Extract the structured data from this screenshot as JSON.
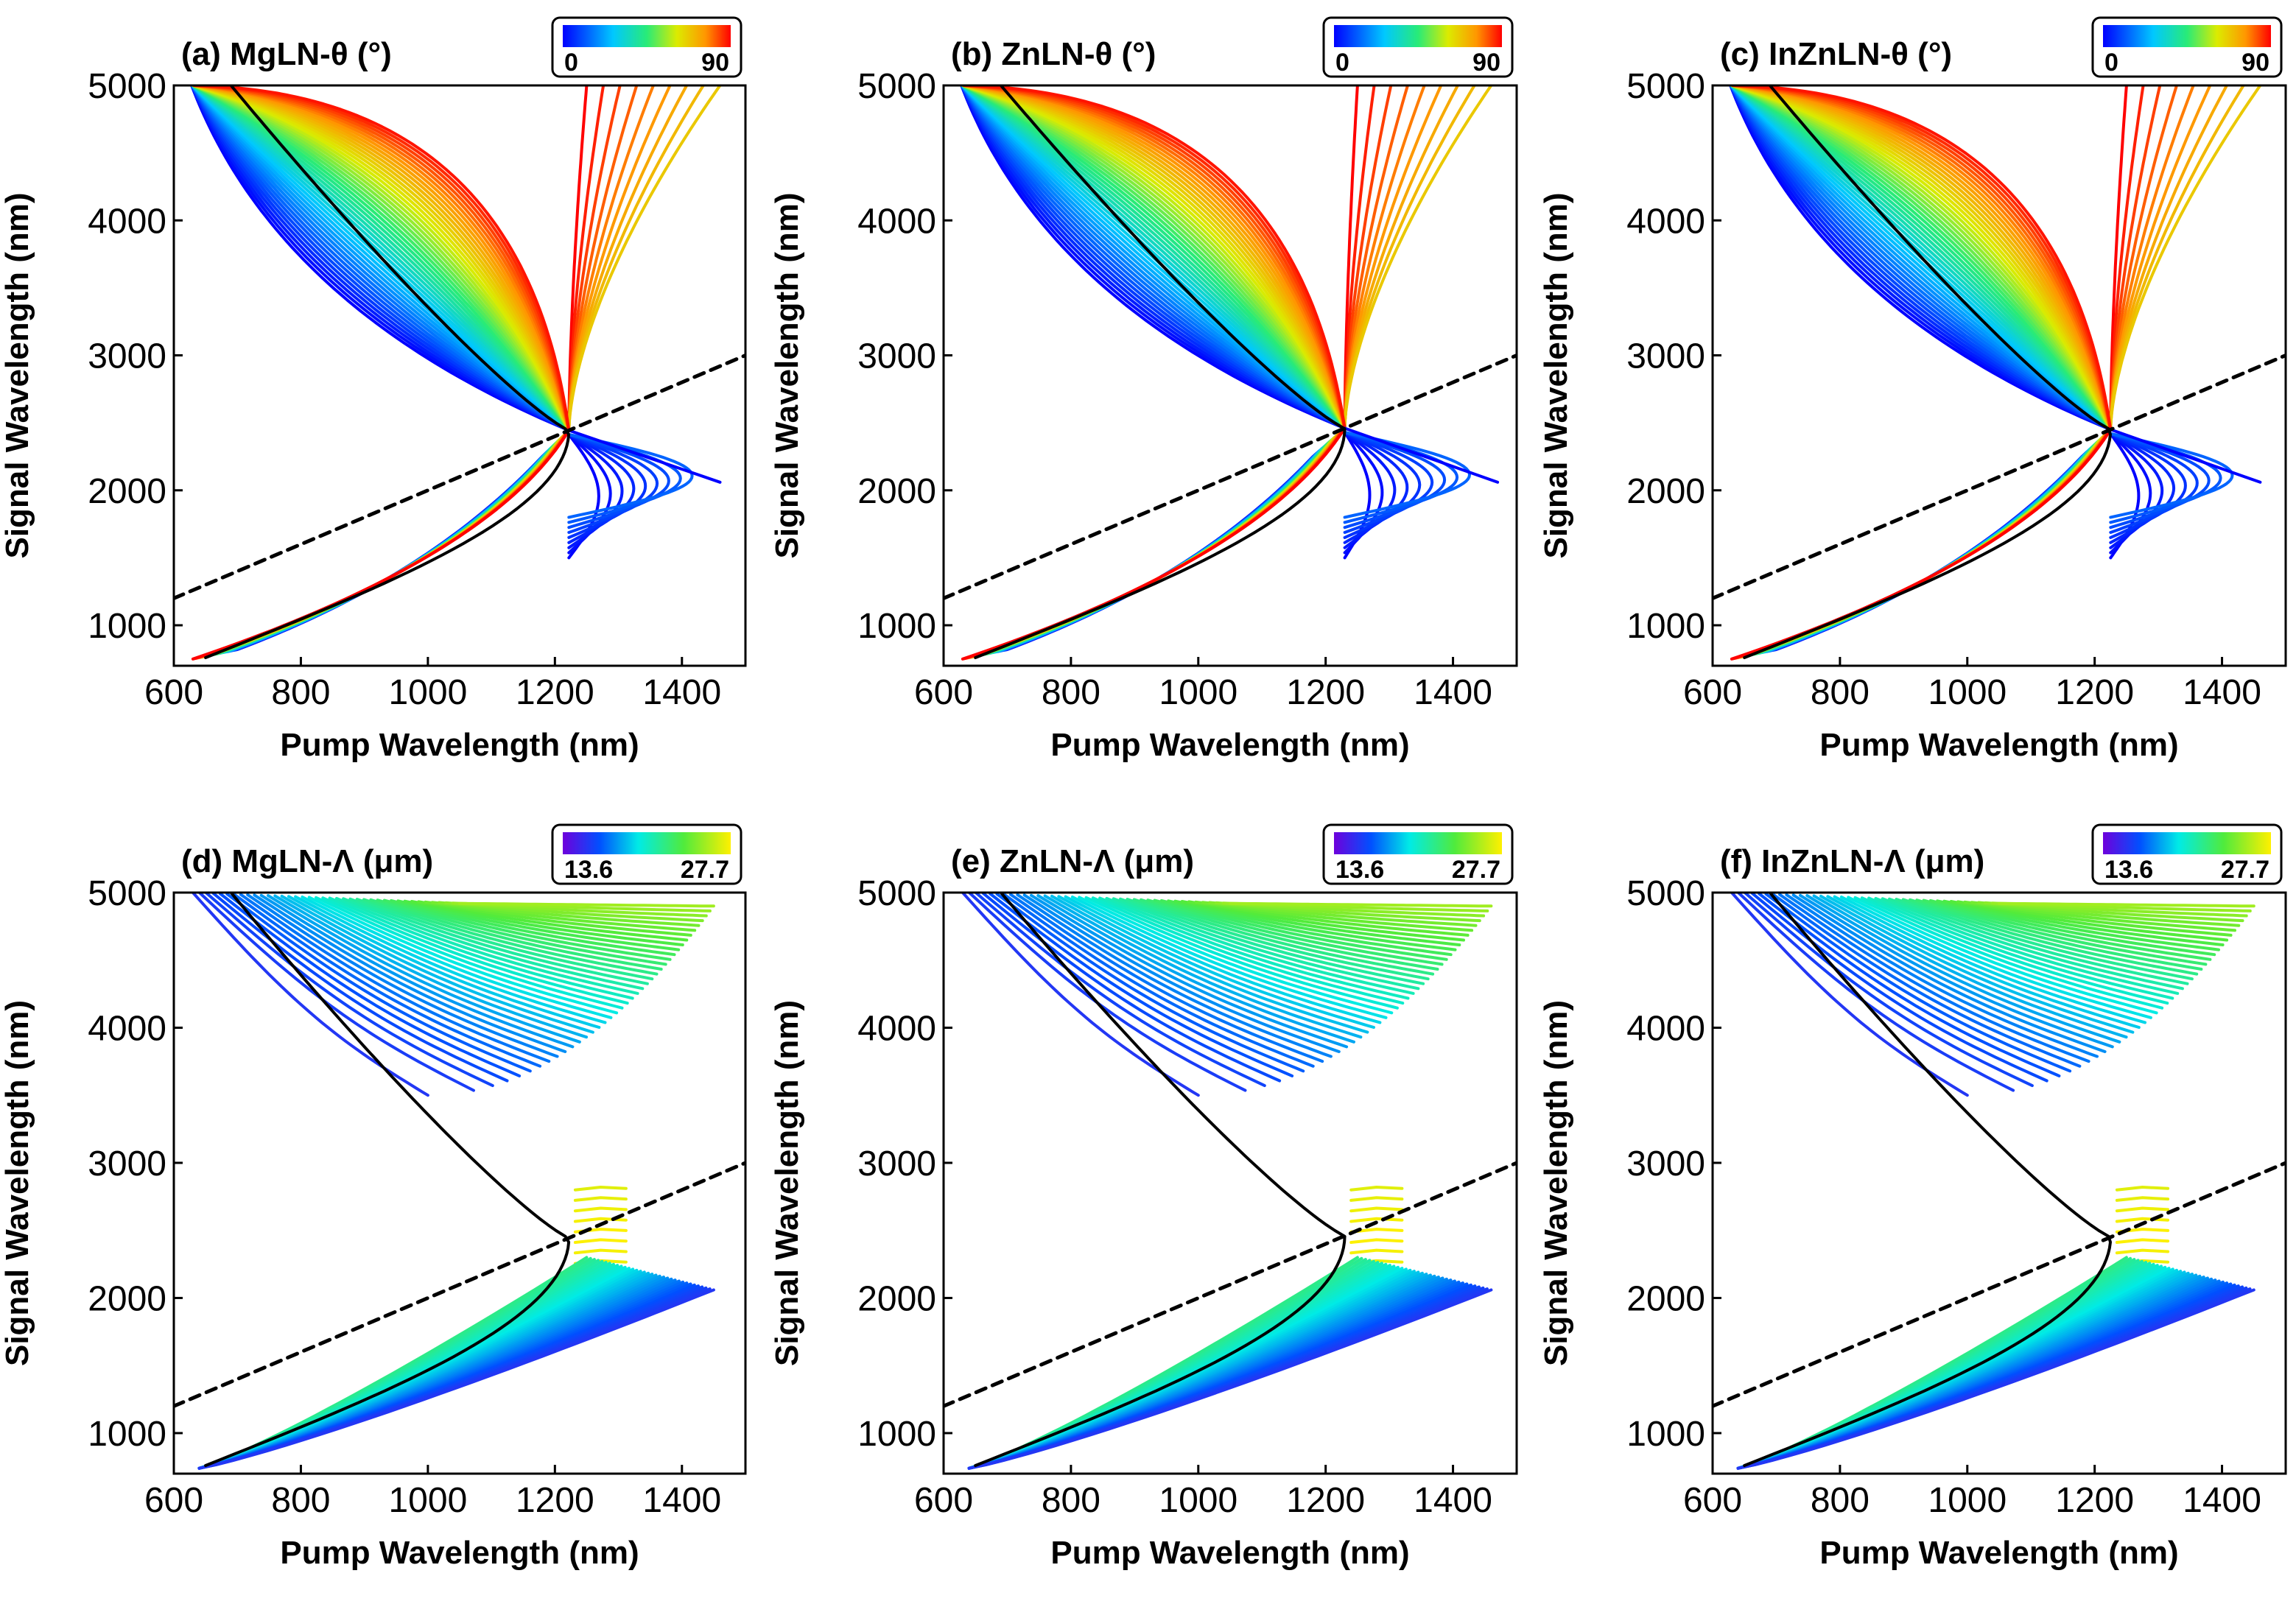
{
  "chart_data": [
    {
      "type": "line",
      "title": "(a) MgLN-θ (°)",
      "xlabel": "Pump Wavelength (nm)",
      "ylabel": "Signal Wavelength (nm)",
      "xlim": [
        600,
        1500
      ],
      "ylim": [
        700,
        5000
      ],
      "xticks": [
        "600",
        "800",
        "1000",
        "1200",
        "1400"
      ],
      "yticks": [
        "1000",
        "2000",
        "3000",
        "4000",
        "5000"
      ],
      "colorbar": {
        "min_label": "0",
        "max_label": "90",
        "colormap": "jet",
        "placement": "top-right"
      },
      "degeneracy": {
        "pump": 1222,
        "signal": 2444
      },
      "reference_line": {
        "style": "dashed",
        "x": [
          600,
          1500
        ],
        "y": [
          1200,
          3000
        ]
      },
      "highlight_curve": {
        "color": "#000000",
        "description": "black"
      },
      "curve_endpoints": {
        "upper_left_x": [
          630,
          690
        ],
        "lower_left_x": [
          630,
          680
        ],
        "right_extent_x": 1460
      }
    },
    {
      "type": "line",
      "title": "(b) ZnLN-θ (°)",
      "xlabel": "Pump Wavelength (nm)",
      "ylabel": "Signal Wavelength (nm)",
      "xlim": [
        600,
        1500
      ],
      "ylim": [
        700,
        5000
      ],
      "xticks": [
        "600",
        "800",
        "1000",
        "1200",
        "1400"
      ],
      "yticks": [
        "1000",
        "2000",
        "3000",
        "4000",
        "5000"
      ],
      "colorbar": {
        "min_label": "0",
        "max_label": "90",
        "colormap": "jet",
        "placement": "top-right"
      },
      "degeneracy": {
        "pump": 1230,
        "signal": 2460
      },
      "reference_line": {
        "style": "dashed",
        "x": [
          600,
          1500
        ],
        "y": [
          1200,
          3000
        ]
      },
      "highlight_curve": {
        "color": "#000000",
        "description": "black"
      },
      "curve_endpoints": {
        "upper_left_x": [
          630,
          690
        ],
        "lower_left_x": [
          640,
          680
        ],
        "right_extent_x": 1470
      }
    },
    {
      "type": "line",
      "title": "(c) InZnLN-θ (°)",
      "xlabel": "Pump Wavelength (nm)",
      "ylabel": "Signal Wavelength (nm)",
      "xlim": [
        600,
        1500
      ],
      "ylim": [
        700,
        5000
      ],
      "xticks": [
        "600",
        "800",
        "1000",
        "1200",
        "1400"
      ],
      "yticks": [
        "1000",
        "2000",
        "3000",
        "4000",
        "5000"
      ],
      "colorbar": {
        "min_label": "0",
        "max_label": "90",
        "colormap": "jet",
        "placement": "top-right"
      },
      "degeneracy": {
        "pump": 1225,
        "signal": 2450
      },
      "reference_line": {
        "style": "dashed",
        "x": [
          600,
          1500
        ],
        "y": [
          1200,
          3000
        ]
      },
      "highlight_curve": {
        "color": "#000000",
        "description": "black"
      },
      "curve_endpoints": {
        "upper_left_x": [
          630,
          690
        ],
        "lower_left_x": [
          630,
          680
        ],
        "right_extent_x": 1460
      }
    },
    {
      "type": "line",
      "title": "(d) MgLN-Λ (μm)",
      "xlabel": "Pump Wavelength (nm)",
      "ylabel": "Signal Wavelength (nm)",
      "xlim": [
        600,
        1500
      ],
      "ylim": [
        700,
        5000
      ],
      "xticks": [
        "600",
        "800",
        "1000",
        "1200",
        "1400"
      ],
      "yticks": [
        "1000",
        "2000",
        "3000",
        "4000",
        "5000"
      ],
      "colorbar": {
        "min_label": "13.6",
        "max_label": "27.7",
        "colormap": "purple-blue-cyan-green-yellow",
        "placement": "top-right"
      },
      "degeneracy": {
        "pump": 1222,
        "signal": 2444
      },
      "reference_line": {
        "style": "dashed",
        "x": [
          600,
          1500
        ],
        "y": [
          1200,
          3000
        ]
      },
      "highlight_curve": {
        "color": "#000000",
        "description": "black"
      },
      "curve_endpoints": {
        "upper_left_x": [
          630,
          690
        ],
        "lower_left_x": [
          630,
          680
        ],
        "right_extent_x": 1450
      }
    },
    {
      "type": "line",
      "title": "(e) ZnLN-Λ (μm)",
      "xlabel": "Pump Wavelength (nm)",
      "ylabel": "Signal Wavelength (nm)",
      "xlim": [
        600,
        1500
      ],
      "ylim": [
        700,
        5000
      ],
      "xticks": [
        "600",
        "800",
        "1000",
        "1200",
        "1400"
      ],
      "yticks": [
        "1000",
        "2000",
        "3000",
        "4000",
        "5000"
      ],
      "colorbar": {
        "min_label": "13.6",
        "max_label": "27.7",
        "colormap": "purple-blue-cyan-green-yellow",
        "placement": "top-right"
      },
      "degeneracy": {
        "pump": 1230,
        "signal": 2460
      },
      "reference_line": {
        "style": "dashed",
        "x": [
          600,
          1500
        ],
        "y": [
          1200,
          3000
        ]
      },
      "highlight_curve": {
        "color": "#000000",
        "description": "black"
      },
      "curve_endpoints": {
        "upper_left_x": [
          630,
          690
        ],
        "lower_left_x": [
          640,
          680
        ],
        "right_extent_x": 1460
      }
    },
    {
      "type": "line",
      "title": "(f) InZnLN-Λ (μm)",
      "xlabel": "Pump Wavelength (nm)",
      "ylabel": "Signal Wavelength (nm)",
      "xlim": [
        600,
        1500
      ],
      "ylim": [
        700,
        5000
      ],
      "xticks": [
        "600",
        "800",
        "1000",
        "1200",
        "1400"
      ],
      "yticks": [
        "1000",
        "2000",
        "3000",
        "4000",
        "5000"
      ],
      "colorbar": {
        "min_label": "13.6",
        "max_label": "27.7",
        "colormap": "purple-blue-cyan-green-yellow",
        "placement": "top-right"
      },
      "degeneracy": {
        "pump": 1225,
        "signal": 2450
      },
      "reference_line": {
        "style": "dashed",
        "x": [
          600,
          1500
        ],
        "y": [
          1200,
          3000
        ]
      },
      "highlight_curve": {
        "color": "#000000",
        "description": "black"
      },
      "curve_endpoints": {
        "upper_left_x": [
          630,
          690
        ],
        "lower_left_x": [
          630,
          680
        ],
        "right_extent_x": 1450
      }
    }
  ]
}
